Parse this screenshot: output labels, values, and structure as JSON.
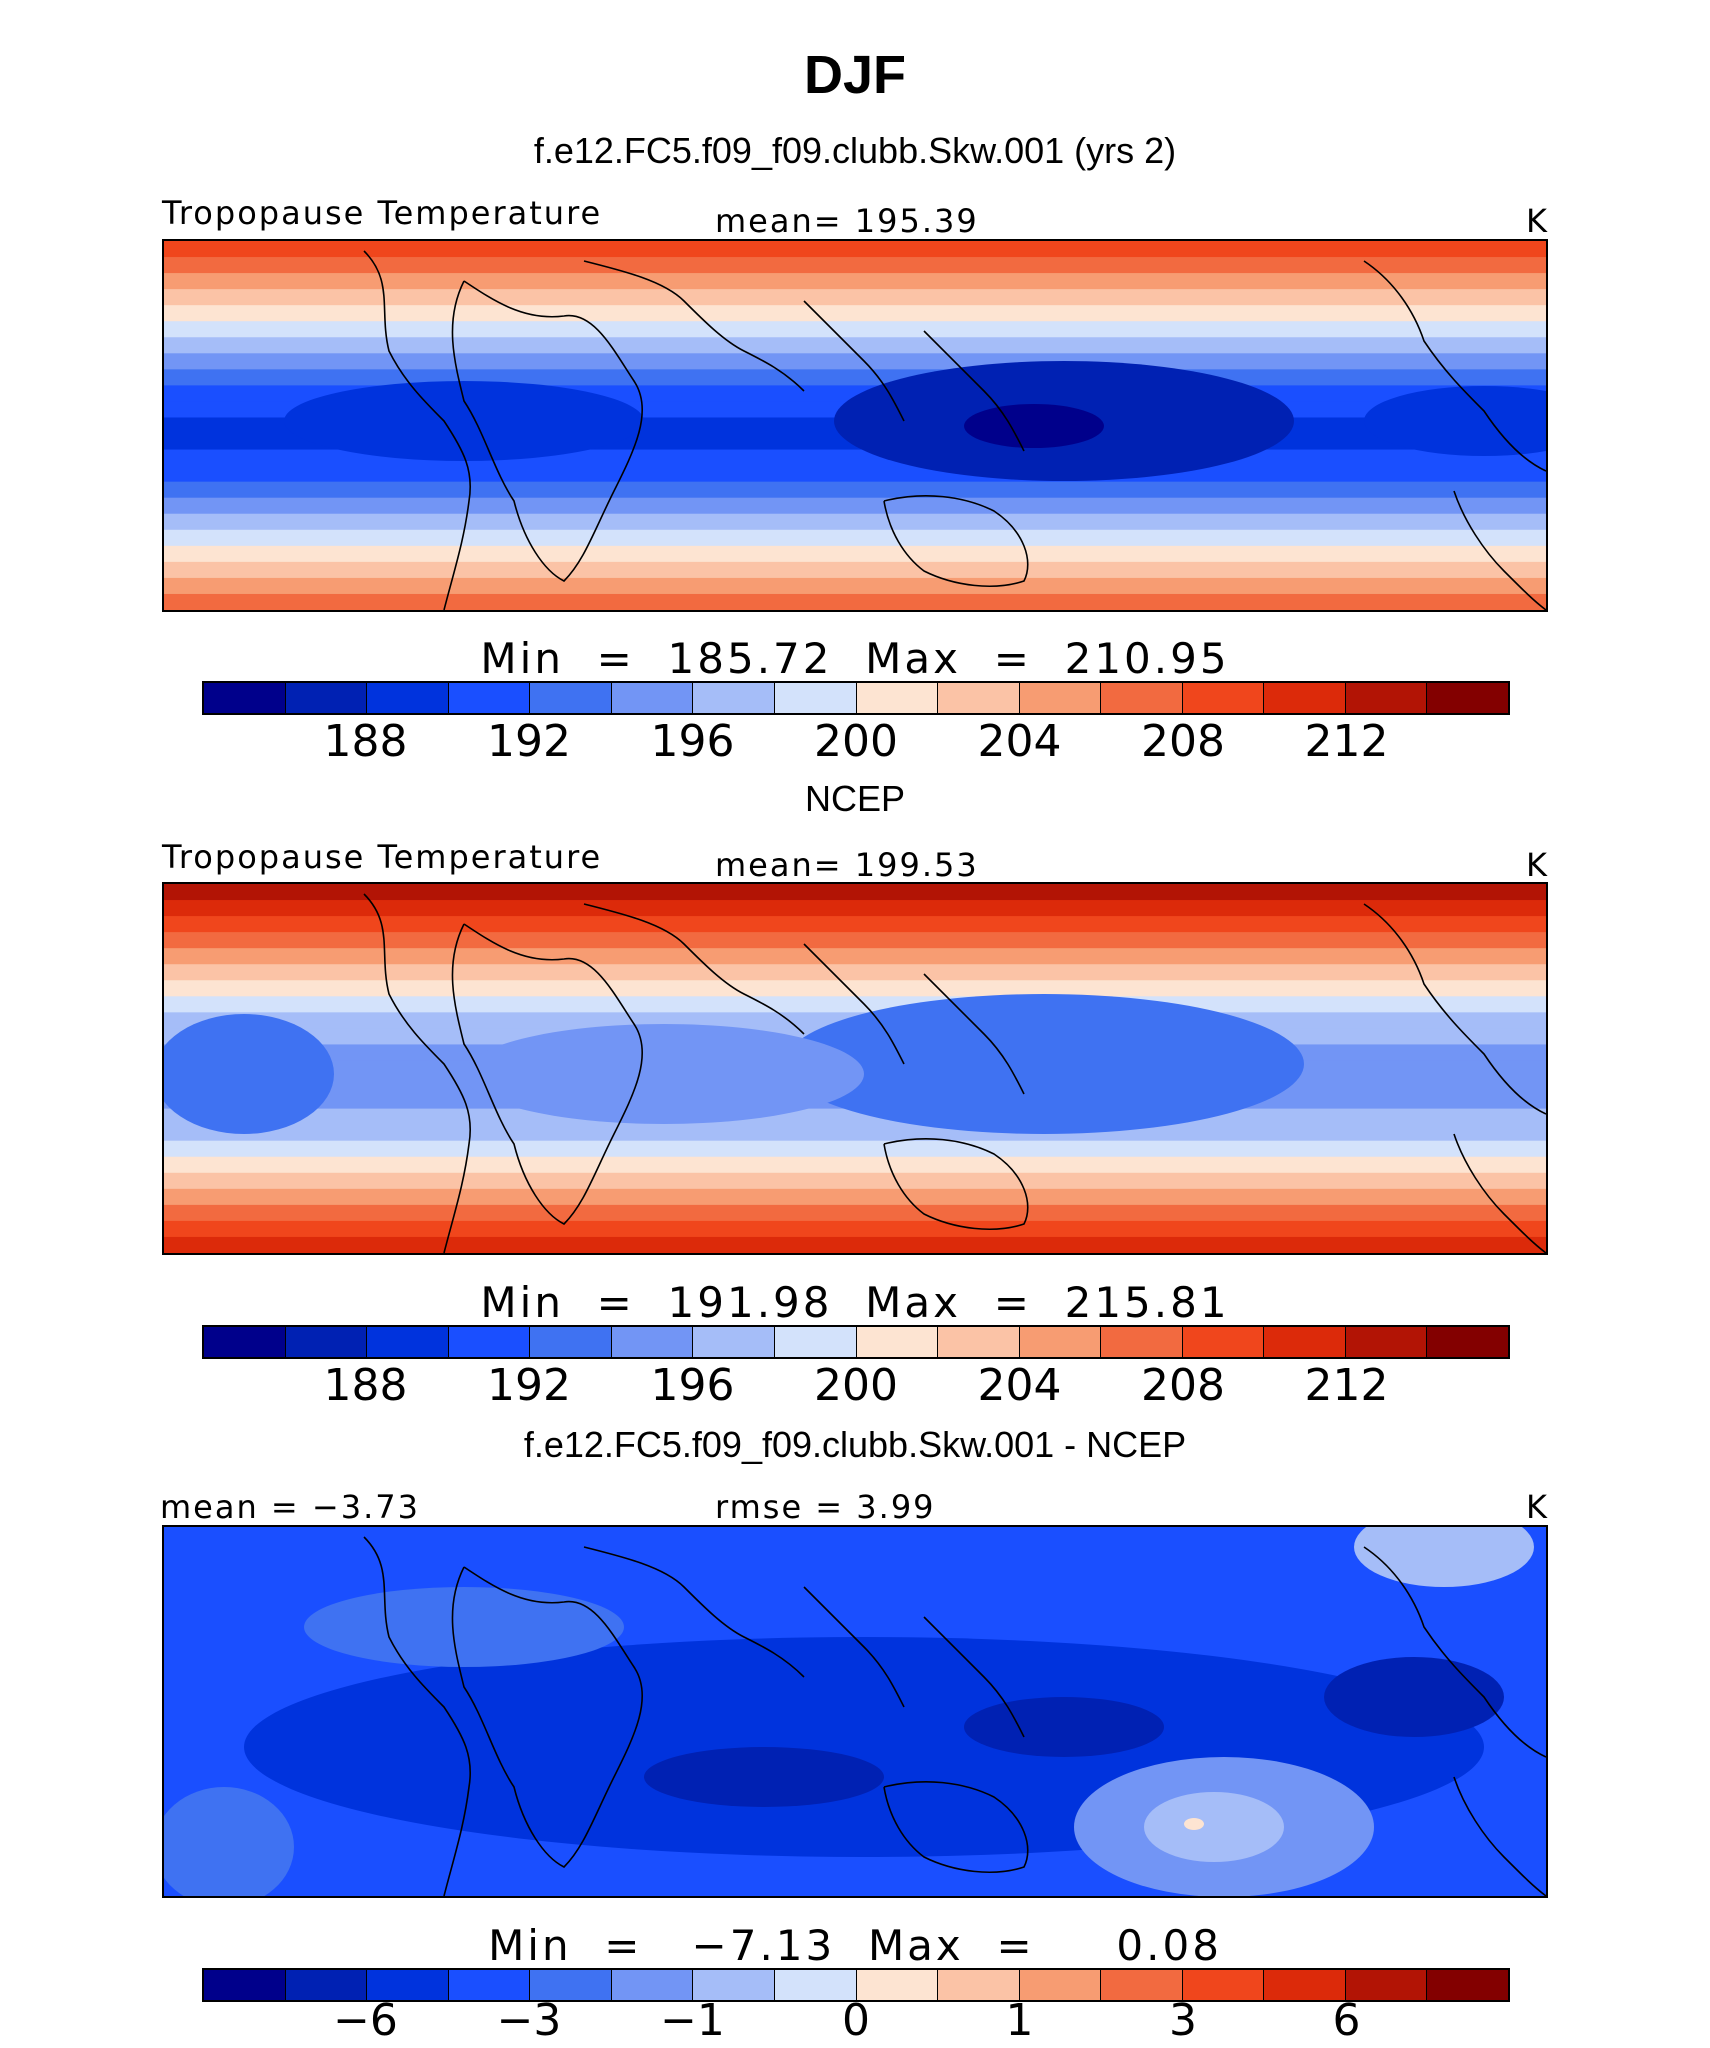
{
  "title": "DJF",
  "palette": [
    "#00008b",
    "#0021b3",
    "#0033dd",
    "#1a4fff",
    "#3f72f2",
    "#7295f5",
    "#a5bdf8",
    "#d3e2fb",
    "#fde4d2",
    "#fbc3a6",
    "#f79c72",
    "#f26a40",
    "#f0461c",
    "#dc2a0a",
    "#b21405",
    "#830000"
  ],
  "panels": [
    {
      "title": "f.e12.FC5.f09_f09.clubb.Skw.001 (yrs 2)",
      "variable": "Tropopause Temperature",
      "stat": "mean=  195.39",
      "units": "K",
      "min_max": "Min  =  185.72  Max  =  210.95",
      "colorbar_ticks": [
        "188",
        "192",
        "196",
        "200",
        "204",
        "208",
        "212"
      ],
      "field_type": "model"
    },
    {
      "title": "NCEP",
      "variable": "Tropopause Temperature",
      "stat": "mean=  199.53",
      "units": "K",
      "min_max": "Min  =  191.98  Max  =  215.81",
      "colorbar_ticks": [
        "188",
        "192",
        "196",
        "200",
        "204",
        "208",
        "212"
      ],
      "field_type": "obs"
    },
    {
      "title": "f.e12.FC5.f09_f09.clubb.Skw.001 - NCEP",
      "variable": "mean  =   −3.73",
      "stat": "rmse  =    3.99",
      "units": "K",
      "min_max": "Min  =   −7.13  Max  =     0.08",
      "colorbar_ticks": [
        "−6",
        "−3",
        "−1",
        "0",
        "1",
        "3",
        "6"
      ],
      "field_type": "diff"
    }
  ]
}
